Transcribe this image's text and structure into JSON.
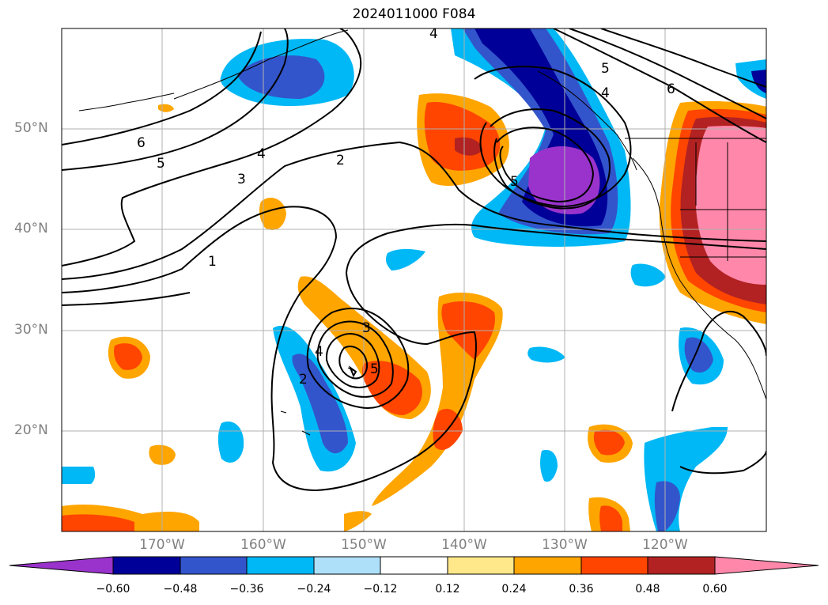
{
  "title": "2024011000 F084",
  "longitude_labels": [
    "170°W",
    "160°W",
    "150°W",
    "140°W",
    "130°W",
    "120°W"
  ],
  "latitude_labels": [
    "50°N",
    "40°N",
    "30°N",
    "20°N"
  ],
  "colorbar": {
    "ticks": [
      "−0.60",
      "−0.48",
      "−0.36",
      "−0.24",
      "−0.12",
      "0.12",
      "0.24",
      "0.36",
      "0.48",
      "0.60"
    ],
    "colors": [
      "#9933cc",
      "#000099",
      "#3355cc",
      "#00b8f5",
      "#aee0fa",
      "#ffffff",
      "#ffe88a",
      "#ffa500",
      "#ff4500",
      "#b22222",
      "#ff88aa"
    ]
  },
  "contour_labels": [
    "4",
    "5",
    "4",
    "6",
    "6",
    "5",
    "4",
    "3",
    "2",
    "1",
    "5",
    "3",
    "4",
    "5",
    "2"
  ]
}
